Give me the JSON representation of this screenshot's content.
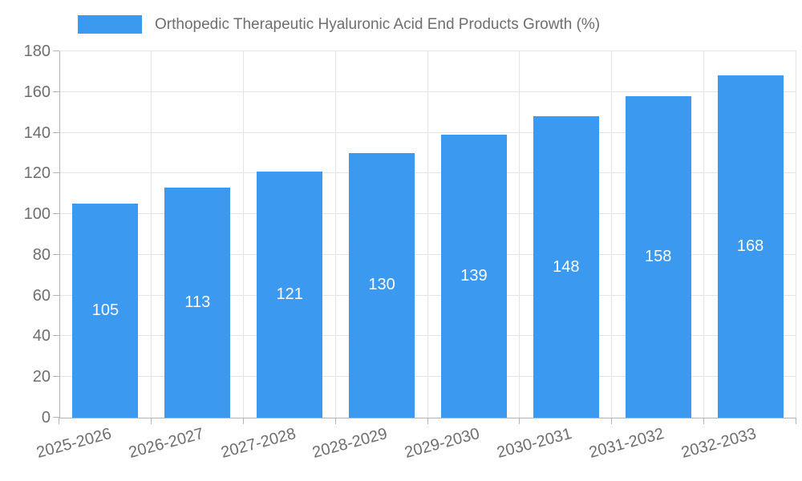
{
  "chart_data": {
    "type": "bar",
    "title": "Orthopedic Therapeutic Hyaluronic Acid End Products Growth (%)",
    "categories": [
      "2025-2026",
      "2026-2027",
      "2027-2028",
      "2028-2029",
      "2029-2030",
      "2030-2031",
      "2031-2032",
      "2032-2033"
    ],
    "values": [
      105,
      113,
      121,
      130,
      139,
      148,
      158,
      168
    ],
    "xlabel": "",
    "ylabel": "",
    "ylim": [
      0,
      180
    ],
    "yticks": [
      0,
      20,
      40,
      60,
      80,
      100,
      120,
      140,
      160,
      180
    ],
    "legend_position": "top",
    "grid": true,
    "value_labels_inside_bars": true,
    "colors": {
      "bar": "#3B99F0",
      "value_label": "#FFFFFF",
      "axis": "#B3B3B3",
      "grid": "#E4E4E4",
      "text": "#6E6E6E"
    }
  }
}
